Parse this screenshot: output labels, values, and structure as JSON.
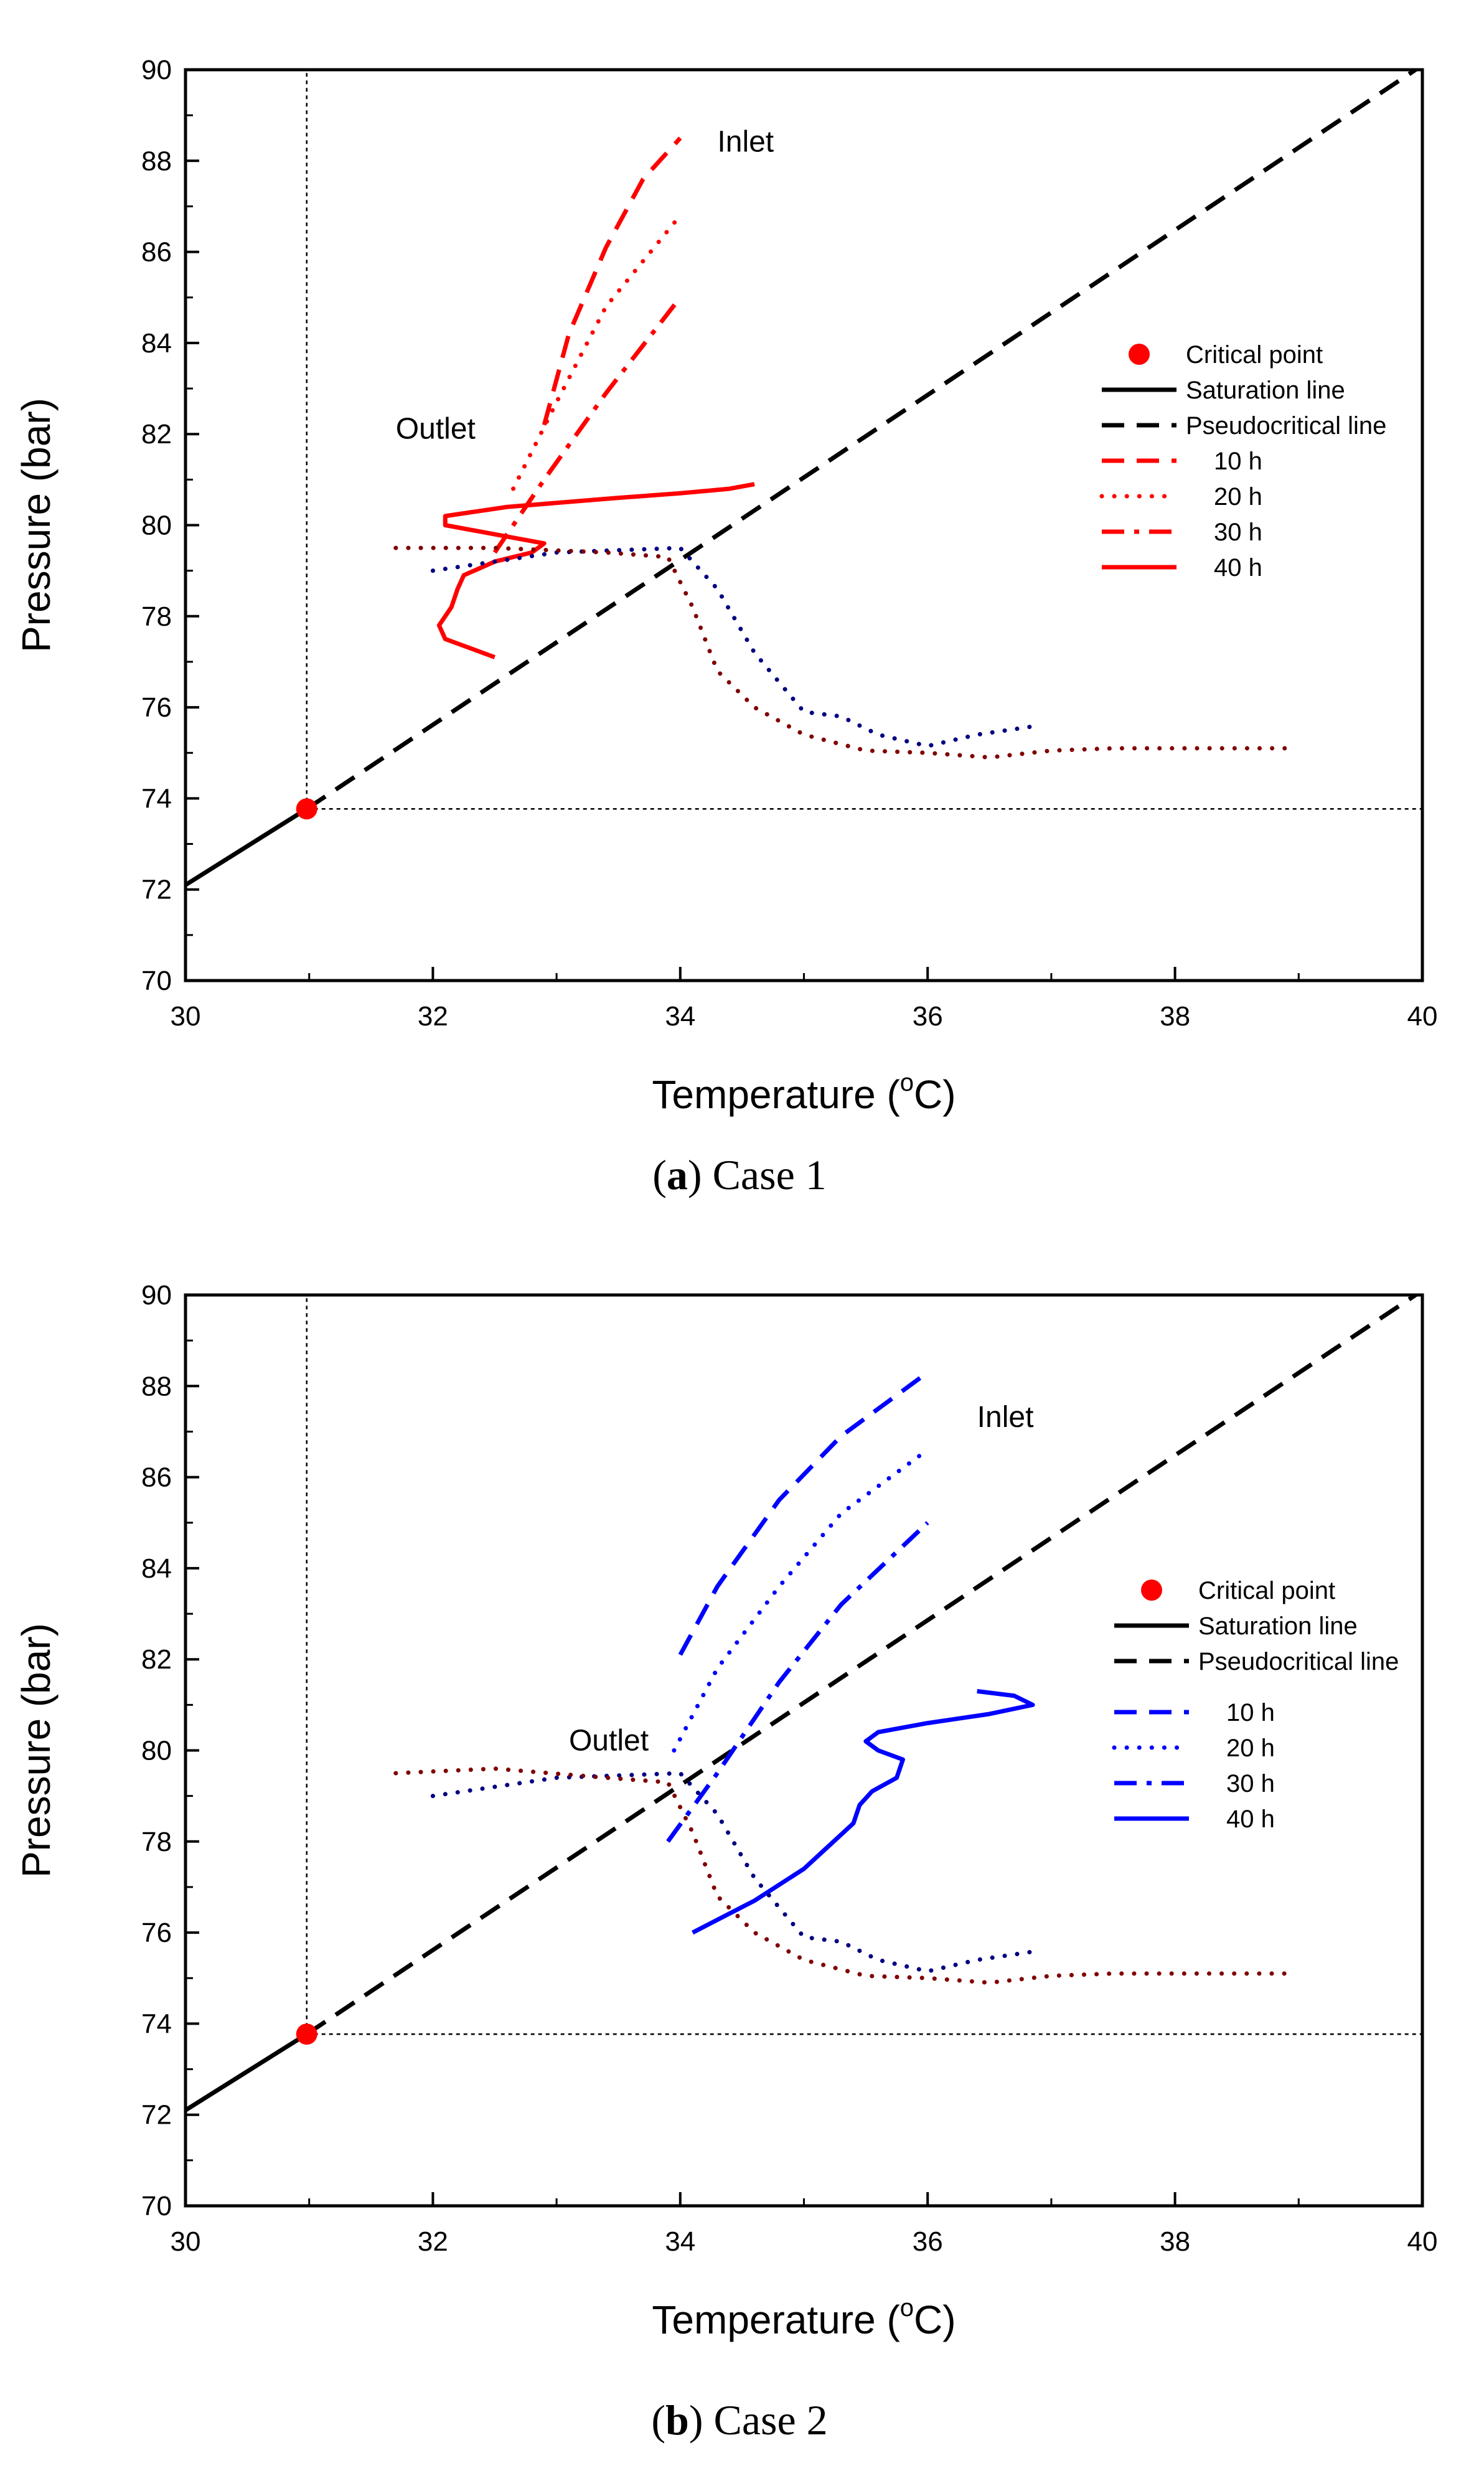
{
  "chart_data": [
    {
      "type": "line",
      "caption_label": "a",
      "caption_text": "Case 1",
      "xlabel": "Temperature (",
      "xlabel_sup": "o",
      "xlabel_end": "C)",
      "ylabel": "Pressure (bar)",
      "xlim": [
        30,
        40
      ],
      "ylim": [
        70,
        90
      ],
      "xticks": [
        30,
        32,
        34,
        36,
        38,
        40
      ],
      "yticks": [
        70,
        72,
        74,
        76,
        78,
        80,
        82,
        84,
        86,
        88,
        90
      ],
      "annotations": [
        {
          "text": "Inlet",
          "x": 34.3,
          "y": 88.2
        },
        {
          "text": "Outlet",
          "x": 31.7,
          "y": 81.9
        }
      ],
      "critical_point": {
        "x": 30.98,
        "y": 73.77,
        "color": "#ff0000"
      },
      "reference_lines": [
        {
          "name": "Critical temperature",
          "points": [
            [
              30.98,
              73.77
            ],
            [
              30.98,
              90
            ]
          ],
          "style": "thin-dotted",
          "color": "#000000"
        },
        {
          "name": "Critical pressure",
          "points": [
            [
              30.98,
              73.77
            ],
            [
              40,
              73.77
            ]
          ],
          "style": "thin-dotted",
          "color": "#000000"
        },
        {
          "name": "Saturation line",
          "points": [
            [
              30,
              72.1
            ],
            [
              30.98,
              73.77
            ]
          ],
          "style": "solid",
          "color": "#000000"
        },
        {
          "name": "Pseudocritical line",
          "points": [
            [
              30.98,
              73.77
            ],
            [
              40,
              90.1
            ]
          ],
          "style": "dash",
          "color": "#000000"
        }
      ],
      "series": [
        {
          "name": "10 h",
          "style": "dash",
          "color": "#ff0000",
          "points": [
            [
              32.9,
              82.2
            ],
            [
              33.1,
              84.2
            ],
            [
              33.4,
              86.1
            ],
            [
              33.7,
              87.6
            ],
            [
              34.0,
              88.5
            ]
          ]
        },
        {
          "name": "20 h",
          "style": "dot",
          "color": "#ff0000",
          "points": [
            [
              32.65,
              80.8
            ],
            [
              33.0,
              82.7
            ],
            [
              33.4,
              84.8
            ],
            [
              34.0,
              86.8
            ]
          ]
        },
        {
          "name": "30 h",
          "style": "dashdot",
          "color": "#ff0000",
          "points": [
            [
              32.5,
              79.4
            ],
            [
              32.9,
              81.0
            ],
            [
              33.4,
              82.9
            ],
            [
              34.0,
              85.0
            ]
          ]
        },
        {
          "name": "40 h",
          "style": "solid",
          "color": "#ff0000",
          "points": [
            [
              32.5,
              77.1
            ],
            [
              32.1,
              77.5
            ],
            [
              32.05,
              77.8
            ],
            [
              32.15,
              78.2
            ],
            [
              32.2,
              78.6
            ],
            [
              32.25,
              78.9
            ],
            [
              32.5,
              79.2
            ],
            [
              32.8,
              79.4
            ],
            [
              32.9,
              79.6
            ],
            [
              32.5,
              79.8
            ],
            [
              32.1,
              80.0
            ],
            [
              32.1,
              80.2
            ],
            [
              32.6,
              80.4
            ],
            [
              33.5,
              80.6
            ],
            [
              34.0,
              80.7
            ],
            [
              34.4,
              80.8
            ],
            [
              34.6,
              80.9
            ]
          ]
        },
        {
          "name": "Outlet trace (blue)",
          "legend": false,
          "style": "dot",
          "color": "#000080",
          "points": [
            [
              32.0,
              79.0
            ],
            [
              33.0,
              79.4
            ],
            [
              34.0,
              79.5
            ],
            [
              34.3,
              78.6
            ],
            [
              34.6,
              77.2
            ],
            [
              35.0,
              75.9
            ],
            [
              35.3,
              75.8
            ],
            [
              35.6,
              75.4
            ],
            [
              36.0,
              75.15
            ],
            [
              36.4,
              75.4
            ],
            [
              36.9,
              75.6
            ]
          ]
        },
        {
          "name": "Outlet trace (brown)",
          "legend": false,
          "style": "dot",
          "color": "#800000",
          "points": [
            [
              31.7,
              79.5
            ],
            [
              32.5,
              79.5
            ],
            [
              33.4,
              79.4
            ],
            [
              33.9,
              79.3
            ],
            [
              34.1,
              78.2
            ],
            [
              34.3,
              76.8
            ],
            [
              34.6,
              76.0
            ],
            [
              35.0,
              75.4
            ],
            [
              35.5,
              75.05
            ],
            [
              36.0,
              75.0
            ],
            [
              36.5,
              74.9
            ],
            [
              37.0,
              75.05
            ],
            [
              37.5,
              75.1
            ],
            [
              38.0,
              75.1
            ],
            [
              38.95,
              75.1
            ]
          ]
        }
      ],
      "legend": {
        "placement": "right",
        "entries": [
          {
            "label": "Critical point",
            "kind": "marker",
            "color": "#ff0000"
          },
          {
            "label": "Saturation line",
            "kind": "line",
            "style": "solid",
            "color": "#000000"
          },
          {
            "label": "Pseudocritical line",
            "kind": "line",
            "style": "dash",
            "color": "#000000"
          },
          {
            "label": "10 h",
            "kind": "line",
            "style": "dash",
            "color": "#ff0000"
          },
          {
            "label": "20 h",
            "kind": "line",
            "style": "dot",
            "color": "#ff0000"
          },
          {
            "label": "30 h",
            "kind": "line",
            "style": "dashdot",
            "color": "#ff0000"
          },
          {
            "label": "40 h",
            "kind": "line",
            "style": "solid",
            "color": "#ff0000"
          }
        ]
      }
    },
    {
      "type": "line",
      "caption_label": "b",
      "caption_text": "Case 2",
      "xlabel": "Temperature (",
      "xlabel_sup": "o",
      "xlabel_end": "C)",
      "ylabel": "Pressure (bar)",
      "xlim": [
        30,
        40
      ],
      "ylim": [
        70,
        90
      ],
      "xticks": [
        30,
        32,
        34,
        36,
        38,
        40
      ],
      "yticks": [
        70,
        72,
        74,
        76,
        78,
        80,
        82,
        84,
        86,
        88,
        90
      ],
      "annotations": [
        {
          "text": "Inlet",
          "x": 36.4,
          "y": 87.1
        },
        {
          "text": "Outlet",
          "x": 33.1,
          "y": 80.0
        }
      ],
      "critical_point": {
        "x": 30.98,
        "y": 73.77,
        "color": "#ff0000"
      },
      "reference_lines": [
        {
          "name": "Critical temperature",
          "points": [
            [
              30.98,
              73.77
            ],
            [
              30.98,
              90
            ]
          ],
          "style": "thin-dotted",
          "color": "#000000"
        },
        {
          "name": "Critical pressure",
          "points": [
            [
              30.98,
              73.77
            ],
            [
              40,
              73.77
            ]
          ],
          "style": "thin-dotted",
          "color": "#000000"
        },
        {
          "name": "Saturation line",
          "points": [
            [
              30,
              72.1
            ],
            [
              30.98,
              73.77
            ]
          ],
          "style": "solid",
          "color": "#000000"
        },
        {
          "name": "Pseudocritical line",
          "points": [
            [
              30.98,
              73.77
            ],
            [
              40,
              90.1
            ]
          ],
          "style": "dash",
          "color": "#000000"
        }
      ],
      "series": [
        {
          "name": "10 h",
          "style": "dash",
          "color": "#0000ff",
          "points": [
            [
              34.0,
              82.1
            ],
            [
              34.3,
              83.6
            ],
            [
              34.8,
              85.5
            ],
            [
              35.3,
              86.9
            ],
            [
              36.0,
              88.3
            ]
          ]
        },
        {
          "name": "20 h",
          "style": "dot",
          "color": "#0000ff",
          "points": [
            [
              33.95,
              80.0
            ],
            [
              34.3,
              81.8
            ],
            [
              34.8,
              83.6
            ],
            [
              35.3,
              85.2
            ],
            [
              36.0,
              86.6
            ]
          ]
        },
        {
          "name": "30 h",
          "style": "dashdot",
          "color": "#0000ff",
          "points": [
            [
              33.9,
              78.0
            ],
            [
              34.3,
              79.5
            ],
            [
              34.8,
              81.5
            ],
            [
              35.3,
              83.2
            ],
            [
              36.0,
              85.0
            ]
          ]
        },
        {
          "name": "40 h",
          "style": "solid",
          "color": "#0000ff",
          "points": [
            [
              34.1,
              76.0
            ],
            [
              34.6,
              76.7
            ],
            [
              35.0,
              77.4
            ],
            [
              35.2,
              77.9
            ],
            [
              35.4,
              78.4
            ],
            [
              35.45,
              78.8
            ],
            [
              35.55,
              79.1
            ],
            [
              35.75,
              79.4
            ],
            [
              35.8,
              79.8
            ],
            [
              35.6,
              80.0
            ],
            [
              35.5,
              80.2
            ],
            [
              35.6,
              80.4
            ],
            [
              36.0,
              80.6
            ],
            [
              36.5,
              80.8
            ],
            [
              36.85,
              81.0
            ],
            [
              36.7,
              81.2
            ],
            [
              36.4,
              81.3
            ]
          ]
        },
        {
          "name": "Outlet trace (blue)",
          "legend": false,
          "style": "dot",
          "color": "#000080",
          "points": [
            [
              32.0,
              79.0
            ],
            [
              33.0,
              79.4
            ],
            [
              34.0,
              79.5
            ],
            [
              34.3,
              78.6
            ],
            [
              34.6,
              77.2
            ],
            [
              35.0,
              75.9
            ],
            [
              35.3,
              75.8
            ],
            [
              35.6,
              75.4
            ],
            [
              36.0,
              75.15
            ],
            [
              36.4,
              75.4
            ],
            [
              36.9,
              75.6
            ]
          ]
        },
        {
          "name": "Outlet trace (brown)",
          "legend": false,
          "style": "dot",
          "color": "#800000",
          "points": [
            [
              31.7,
              79.5
            ],
            [
              32.5,
              79.6
            ],
            [
              33.4,
              79.4
            ],
            [
              33.9,
              79.3
            ],
            [
              34.1,
              78.2
            ],
            [
              34.3,
              76.8
            ],
            [
              34.6,
              76.0
            ],
            [
              35.0,
              75.4
            ],
            [
              35.5,
              75.05
            ],
            [
              36.0,
              75.0
            ],
            [
              36.5,
              74.9
            ],
            [
              37.0,
              75.05
            ],
            [
              37.5,
              75.1
            ],
            [
              38.0,
              75.1
            ],
            [
              38.95,
              75.1
            ]
          ]
        }
      ],
      "legend": {
        "placement": "right",
        "entries": [
          {
            "label": "Critical point",
            "kind": "marker",
            "color": "#ff0000"
          },
          {
            "label": "Saturation line",
            "kind": "line",
            "style": "solid",
            "color": "#000000"
          },
          {
            "label": "Pseudocritical line",
            "kind": "line",
            "style": "dash",
            "color": "#000000"
          },
          {
            "label": "10 h",
            "kind": "line",
            "style": "dash",
            "color": "#0000ff"
          },
          {
            "label": "20 h",
            "kind": "line",
            "style": "dot",
            "color": "#0000ff"
          },
          {
            "label": "30 h",
            "kind": "line",
            "style": "dashdot",
            "color": "#0000ff"
          },
          {
            "label": "40 h",
            "kind": "line",
            "style": "solid",
            "color": "#0000ff"
          }
        ]
      }
    }
  ]
}
